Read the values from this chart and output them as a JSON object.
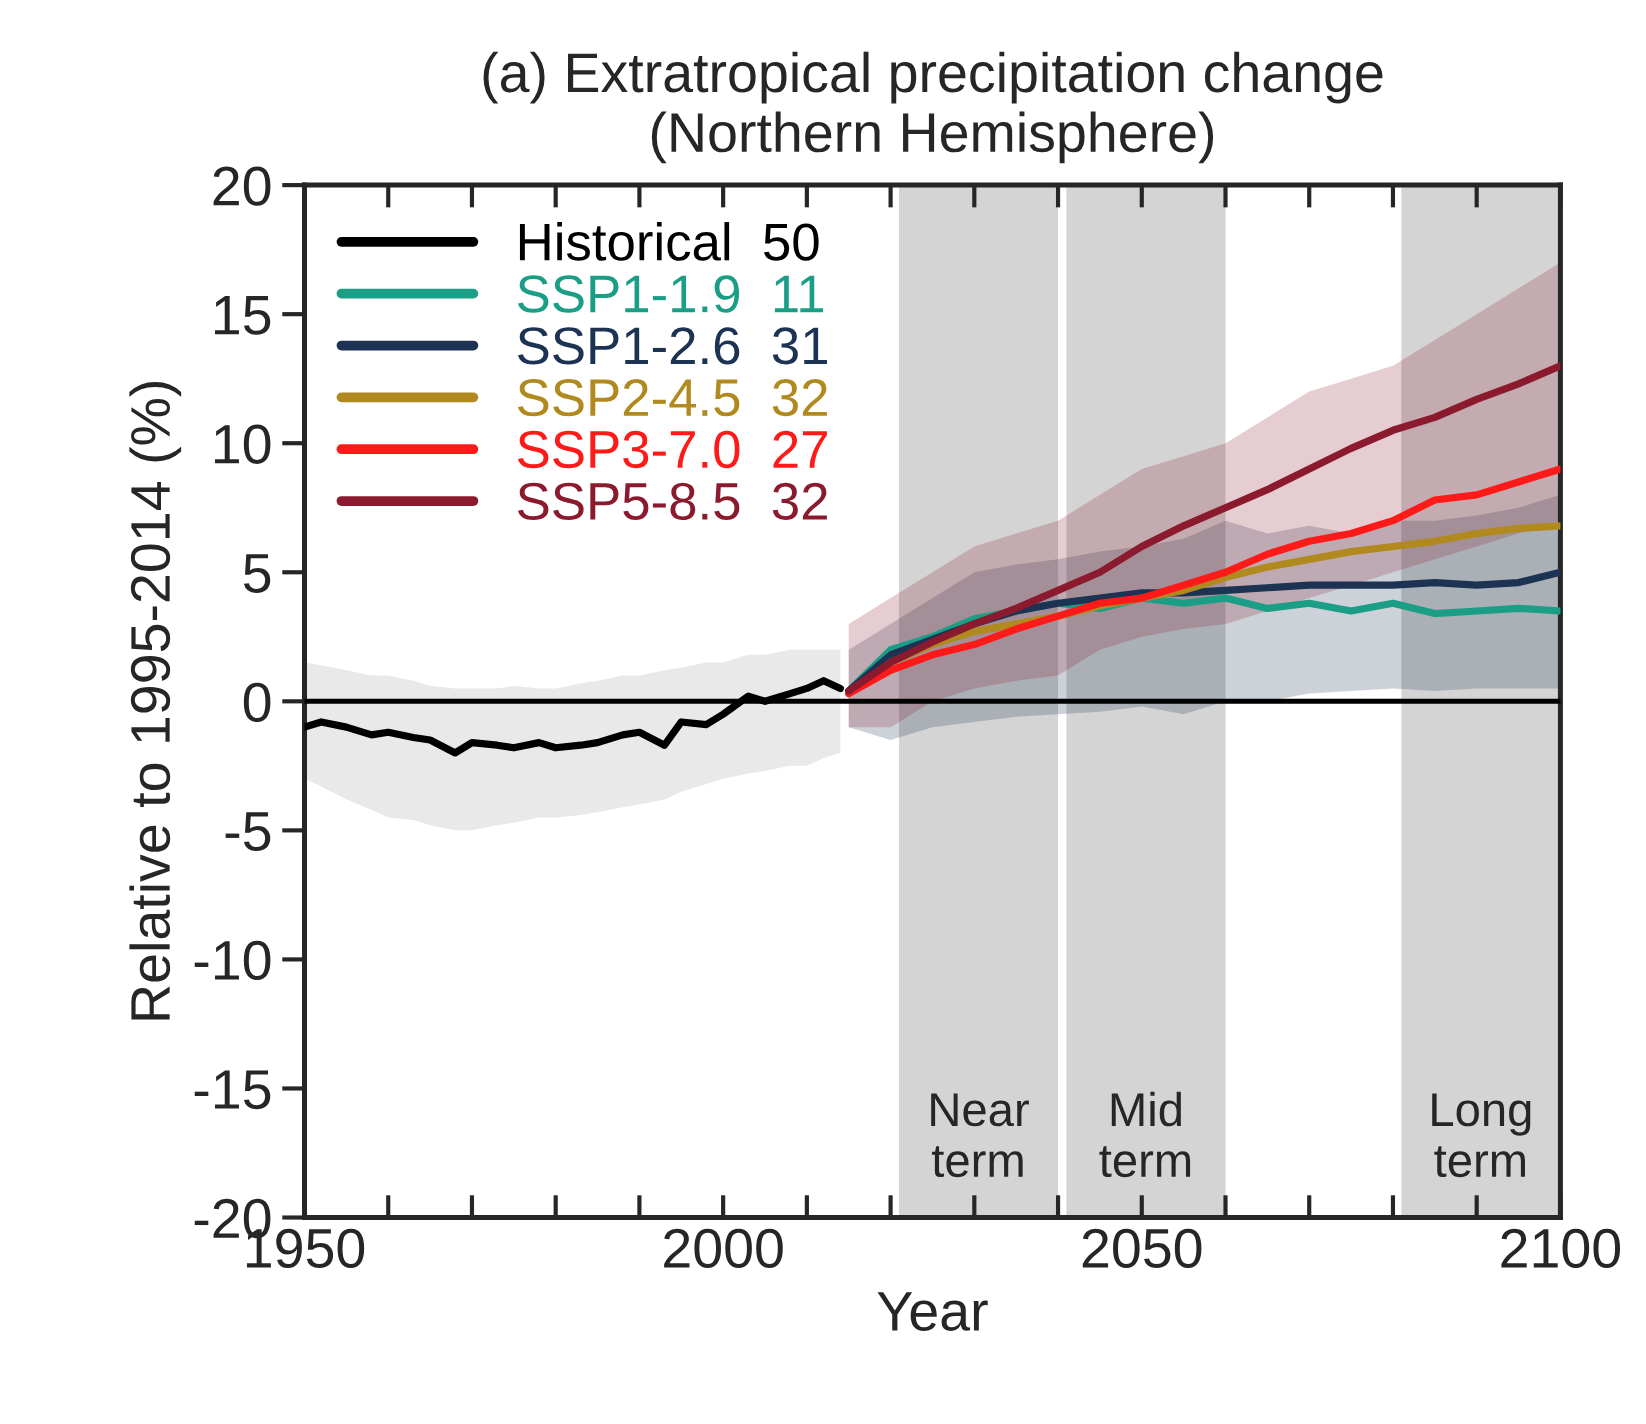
{
  "chart_data": {
    "type": "line",
    "title": "(a) Extratropical precipitation change\n(Northern Hemisphere)",
    "xlabel": "Year",
    "ylabel": "Relative to 1995-2014 (%)",
    "xlim": [
      1950,
      2100
    ],
    "ylim": [
      -20,
      20
    ],
    "xticks": [
      1950,
      {
        "value": 1960,
        "label": null
      },
      {
        "value": 1970,
        "label": null
      },
      {
        "value": 1980,
        "label": null
      },
      {
        "value": 1990,
        "label": null
      },
      2000,
      {
        "value": 2010,
        "label": null
      },
      {
        "value": 2020,
        "label": null
      },
      {
        "value": 2030,
        "label": null
      },
      {
        "value": 2040,
        "label": null
      },
      2050,
      {
        "value": 2060,
        "label": null
      },
      {
        "value": 2070,
        "label": null
      },
      {
        "value": 2080,
        "label": null
      },
      {
        "value": 2090,
        "label": null
      },
      2100
    ],
    "yticks": [
      -20,
      -15,
      -10,
      -5,
      0,
      5,
      10,
      15,
      20
    ],
    "grid": false,
    "legend": "top left",
    "line_style": "solid",
    "marker": "none",
    "ref_lines": [
      {
        "axis": "y",
        "value": 0,
        "color": "#000000"
      }
    ],
    "bands": [
      {
        "axis": "x",
        "from": 2021,
        "to": 2040,
        "label": "Near\nterm",
        "color": "#d4d4d4"
      },
      {
        "axis": "x",
        "from": 2041,
        "to": 2060,
        "label": "Mid\nterm",
        "color": "#d4d4d4"
      },
      {
        "axis": "x",
        "from": 2081,
        "to": 2100,
        "label": "Long\nterm",
        "color": "#d4d4d4"
      }
    ],
    "series": [
      {
        "name": "Historical  50",
        "color": "#000000",
        "x": [
          1950,
          1952,
          1955,
          1958,
          1960,
          1963,
          1965,
          1968,
          1970,
          1973,
          1975,
          1978,
          1980,
          1983,
          1985,
          1988,
          1990,
          1993,
          1995,
          1998,
          2000,
          2003,
          2005,
          2008,
          2010,
          2012,
          2014
        ],
        "values": [
          -1.0,
          -0.8,
          -1.0,
          -1.3,
          -1.2,
          -1.4,
          -1.5,
          -2.0,
          -1.6,
          -1.7,
          -1.8,
          -1.6,
          -1.8,
          -1.7,
          -1.6,
          -1.3,
          -1.2,
          -1.7,
          -0.8,
          -0.9,
          -0.5,
          0.2,
          0.0,
          0.3,
          0.5,
          0.8,
          0.5
        ],
        "lower": [
          -3.0,
          -3.3,
          -3.8,
          -4.2,
          -4.5,
          -4.6,
          -4.8,
          -5.0,
          -5.0,
          -4.8,
          -4.7,
          -4.5,
          -4.5,
          -4.4,
          -4.3,
          -4.1,
          -4.0,
          -3.8,
          -3.5,
          -3.2,
          -3.0,
          -2.8,
          -2.7,
          -2.5,
          -2.5,
          -2.2,
          -2.0
        ],
        "upper": [
          1.5,
          1.4,
          1.2,
          1.0,
          1.0,
          0.8,
          0.6,
          0.5,
          0.5,
          0.5,
          0.6,
          0.5,
          0.5,
          0.7,
          0.8,
          1.0,
          1.0,
          1.2,
          1.3,
          1.5,
          1.5,
          1.8,
          1.8,
          2.0,
          2.0,
          2.0,
          2.0
        ]
      },
      {
        "name": "SSP1-1.9  11",
        "color": "#1b9e86",
        "x": [
          2015,
          2020,
          2025,
          2030,
          2035,
          2040,
          2045,
          2050,
          2055,
          2060,
          2065,
          2070,
          2075,
          2080,
          2085,
          2090,
          2095,
          2100
        ],
        "values": [
          0.4,
          2.0,
          2.5,
          3.2,
          3.5,
          3.8,
          3.6,
          4.0,
          3.8,
          4.0,
          3.6,
          3.8,
          3.5,
          3.8,
          3.4,
          3.5,
          3.6,
          3.5
        ]
      },
      {
        "name": "SSP1-2.6  31",
        "color": "#1d3354",
        "x": [
          2015,
          2020,
          2025,
          2030,
          2035,
          2040,
          2045,
          2050,
          2055,
          2060,
          2065,
          2070,
          2075,
          2080,
          2085,
          2090,
          2095,
          2100
        ],
        "values": [
          0.4,
          1.8,
          2.4,
          3.0,
          3.5,
          3.8,
          4.0,
          4.2,
          4.2,
          4.3,
          4.4,
          4.5,
          4.5,
          4.5,
          4.6,
          4.5,
          4.6,
          5.0
        ],
        "lower": [
          -1.0,
          -1.5,
          -1.0,
          -0.8,
          -0.6,
          -0.5,
          -0.4,
          -0.2,
          -0.5,
          0.0,
          0.0,
          0.3,
          0.4,
          0.5,
          0.4,
          0.5,
          0.5,
          0.5
        ],
        "upper": [
          2.0,
          3.0,
          4.0,
          5.0,
          5.3,
          5.5,
          5.8,
          6.0,
          6.3,
          7.0,
          6.5,
          6.8,
          6.5,
          7.0,
          7.0,
          7.2,
          7.5,
          8.0
        ]
      },
      {
        "name": "SSP2-4.5  32",
        "color": "#b08a1e",
        "x": [
          2015,
          2020,
          2025,
          2030,
          2035,
          2040,
          2045,
          2050,
          2055,
          2060,
          2065,
          2070,
          2075,
          2080,
          2085,
          2090,
          2095,
          2100
        ],
        "values": [
          0.3,
          1.5,
          2.2,
          2.7,
          3.0,
          3.3,
          3.7,
          4.0,
          4.3,
          4.8,
          5.2,
          5.5,
          5.8,
          6.0,
          6.2,
          6.5,
          6.7,
          6.8
        ]
      },
      {
        "name": "SSP3-7.0  27",
        "color": "#ff1a1a",
        "x": [
          2015,
          2020,
          2025,
          2030,
          2035,
          2040,
          2045,
          2050,
          2055,
          2060,
          2065,
          2070,
          2075,
          2080,
          2085,
          2090,
          2095,
          2100
        ],
        "values": [
          0.3,
          1.2,
          1.8,
          2.2,
          2.8,
          3.3,
          3.8,
          4.0,
          4.5,
          5.0,
          5.7,
          6.2,
          6.5,
          7.0,
          7.8,
          8.0,
          8.5,
          9.0
        ]
      },
      {
        "name": "SSP5-8.5  32",
        "color": "#8b1a2e",
        "x": [
          2015,
          2020,
          2025,
          2030,
          2035,
          2040,
          2045,
          2050,
          2055,
          2060,
          2065,
          2070,
          2075,
          2080,
          2085,
          2090,
          2095,
          2100
        ],
        "values": [
          0.4,
          1.5,
          2.3,
          3.0,
          3.6,
          4.3,
          5.0,
          6.0,
          6.8,
          7.5,
          8.2,
          9.0,
          9.8,
          10.5,
          11.0,
          11.7,
          12.3,
          13.0
        ],
        "lower": [
          -1.0,
          -1.0,
          0.0,
          0.5,
          0.8,
          1.0,
          2.0,
          2.5,
          2.8,
          3.0,
          3.5,
          4.0,
          4.5,
          5.0,
          5.5,
          6.0,
          6.5,
          7.0
        ],
        "upper": [
          3.0,
          4.0,
          5.0,
          6.0,
          6.5,
          7.0,
          8.0,
          9.0,
          9.5,
          10.0,
          11.0,
          12.0,
          12.5,
          13.0,
          14.0,
          15.0,
          16.0,
          17.0
        ]
      }
    ]
  }
}
